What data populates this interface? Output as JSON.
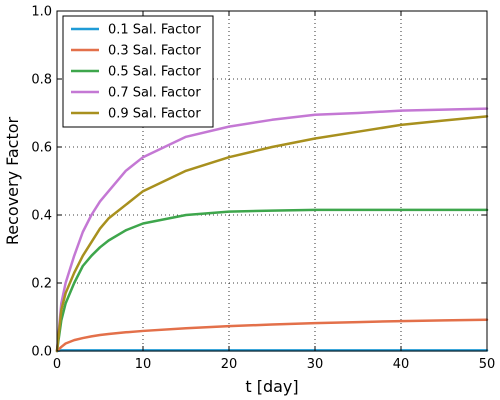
{
  "chart_data": {
    "type": "line",
    "title": "",
    "xlabel": "t [day]",
    "ylabel": "Recovery Factor",
    "xlim": [
      0,
      50
    ],
    "ylim": [
      0,
      1.0
    ],
    "x_ticks": [
      0,
      10,
      20,
      30,
      40,
      50
    ],
    "y_ticks": [
      0.0,
      0.2,
      0.4,
      0.6,
      0.8,
      1.0
    ],
    "x_tick_labels": [
      "0",
      "10",
      "20",
      "30",
      "40",
      "50"
    ],
    "y_tick_labels": [
      "0.0",
      "0.2",
      "0.4",
      "0.6",
      "0.8",
      "1.0"
    ],
    "grid": true,
    "legend_position": "top-left",
    "x": [
      0,
      0.5,
      1,
      2,
      3,
      4,
      5,
      6,
      8,
      10,
      15,
      20,
      25,
      30,
      35,
      40,
      45,
      50
    ],
    "series": [
      {
        "name": "0.1 Sal. Factor",
        "color": "#1f9bd6",
        "values": [
          0,
          0.002,
          0.002,
          0.002,
          0.002,
          0.002,
          0.002,
          0.002,
          0.002,
          0.002,
          0.002,
          0.002,
          0.002,
          0.002,
          0.002,
          0.002,
          0.002,
          0.002
        ]
      },
      {
        "name": "0.3 Sal. Factor",
        "color": "#e3704a",
        "values": [
          0,
          0.012,
          0.022,
          0.032,
          0.038,
          0.043,
          0.047,
          0.05,
          0.055,
          0.059,
          0.067,
          0.073,
          0.078,
          0.082,
          0.085,
          0.088,
          0.09,
          0.092
        ]
      },
      {
        "name": "0.5 Sal. Factor",
        "color": "#3ea64c",
        "values": [
          0,
          0.09,
          0.14,
          0.2,
          0.25,
          0.28,
          0.305,
          0.325,
          0.355,
          0.375,
          0.4,
          0.41,
          0.413,
          0.415,
          0.415,
          0.415,
          0.415,
          0.415
        ]
      },
      {
        "name": "0.7 Sal. Factor",
        "color": "#c478d4",
        "values": [
          0,
          0.14,
          0.2,
          0.28,
          0.35,
          0.4,
          0.44,
          0.47,
          0.53,
          0.57,
          0.63,
          0.66,
          0.68,
          0.695,
          0.7,
          0.707,
          0.71,
          0.713
        ]
      },
      {
        "name": "0.9 Sal. Factor",
        "color": "#a8901e",
        "values": [
          0,
          0.12,
          0.17,
          0.23,
          0.28,
          0.32,
          0.36,
          0.39,
          0.43,
          0.47,
          0.53,
          0.57,
          0.6,
          0.625,
          0.645,
          0.665,
          0.678,
          0.69
        ]
      }
    ]
  }
}
